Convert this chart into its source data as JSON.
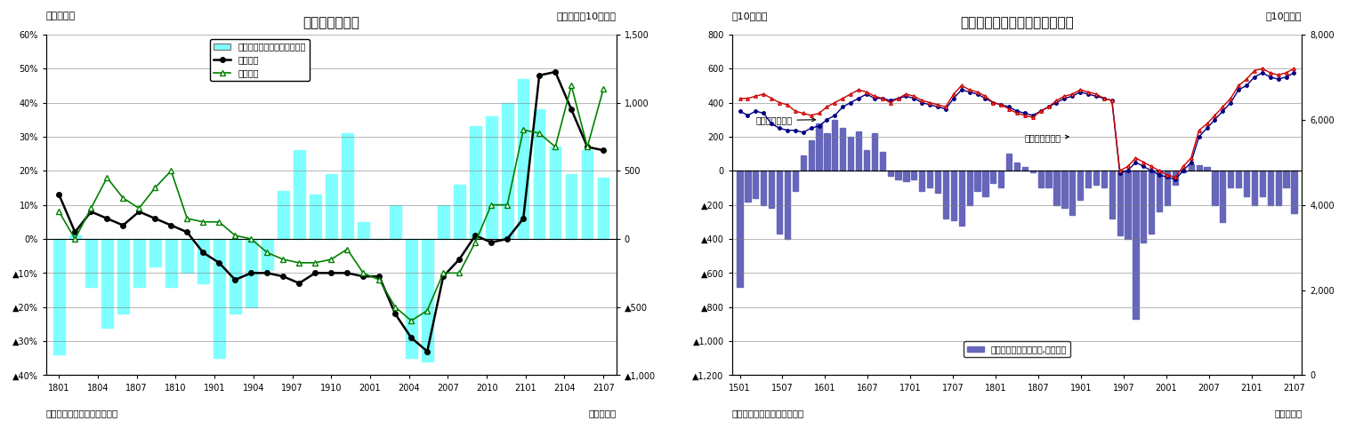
{
  "chart1": {
    "title": "貿易収支の推移",
    "ylabel_left": "（前年比）",
    "ylabel_right": "（前年差、10億円）",
    "xlabel": "（年・月）",
    "source": "（資料）財務省「貿易統計」",
    "xtick_labels": [
      "1801",
      "1804",
      "1807",
      "1810",
      "1901",
      "1904",
      "1907",
      "1910",
      "2001",
      "2004",
      "2007",
      "2010",
      "2101",
      "2104",
      "2107"
    ],
    "ylim_left": [
      -0.4,
      0.6
    ],
    "ylim_right": [
      -1000,
      1500
    ],
    "yticks_left": [
      -0.4,
      -0.3,
      -0.2,
      -0.1,
      0.0,
      0.1,
      0.2,
      0.3,
      0.4,
      0.5,
      0.6
    ],
    "ytick_labels_left": [
      "▲40%",
      "▲30%",
      "▲20%",
      "▲10%",
      "0%",
      "10%",
      "20%",
      "30%",
      "40%",
      "50%",
      "60%"
    ],
    "yticks_right": [
      -1000,
      -500,
      0,
      500,
      1000,
      1500
    ],
    "ytick_labels_right": [
      "▲1,000",
      "▲500",
      "0",
      "500",
      "1,000",
      "1,500"
    ],
    "bar_color": "#7fffff",
    "bar_values": [
      -0.34,
      0.01,
      -0.14,
      -0.26,
      -0.22,
      -0.14,
      -0.08,
      -0.14,
      -0.1,
      -0.13,
      -0.35,
      -0.22,
      -0.2,
      -0.09,
      0.14,
      0.26,
      0.13,
      0.19,
      0.31,
      0.05,
      0.0,
      0.1,
      -0.35,
      -0.36,
      0.1,
      0.16,
      0.33,
      0.36,
      0.4,
      0.47,
      0.38,
      0.27,
      0.19,
      0.26,
      0.18
    ],
    "export_values": [
      0.13,
      0.02,
      0.08,
      0.06,
      0.04,
      0.08,
      0.06,
      0.04,
      0.02,
      -0.04,
      -0.07,
      -0.12,
      -0.1,
      -0.1,
      -0.11,
      -0.13,
      -0.1,
      -0.1,
      -0.1,
      -0.11,
      -0.11,
      -0.22,
      -0.29,
      -0.33,
      -0.11,
      -0.06,
      0.01,
      -0.01,
      0.0,
      0.06,
      0.48,
      0.49,
      0.38,
      0.27,
      0.26
    ],
    "import_values": [
      0.08,
      0.0,
      0.09,
      0.18,
      0.12,
      0.09,
      0.15,
      0.2,
      0.06,
      0.05,
      0.05,
      0.01,
      0.0,
      -0.04,
      -0.06,
      -0.07,
      -0.07,
      -0.06,
      -0.03,
      -0.1,
      -0.12,
      -0.2,
      -0.24,
      -0.21,
      -0.1,
      -0.1,
      -0.01,
      0.1,
      0.1,
      0.32,
      0.31,
      0.27,
      0.45,
      0.27,
      0.44
    ],
    "legend_bar": "貿易収支・前年差（右目盛）",
    "legend_export": "輸出金額",
    "legend_import": "輸入金額",
    "export_color": "#000000",
    "import_color": "#008000"
  },
  "chart2": {
    "title": "貿易収支（季節調整値）の推移",
    "ylabel_left": "（10億円）",
    "ylabel_right": "（10億円）",
    "xlabel": "（年・月）",
    "source": "（資料）財務省「貿易統計」",
    "xtick_labels": [
      "1501",
      "1507",
      "1601",
      "1607",
      "1701",
      "1707",
      "1801",
      "1807",
      "1901",
      "1907",
      "2001",
      "2007",
      "2101",
      "2107"
    ],
    "ylim_left": [
      -1200,
      800
    ],
    "ylim_right": [
      0,
      8000
    ],
    "yticks_left": [
      -1200,
      -1000,
      -800,
      -600,
      -400,
      -200,
      0,
      200,
      400,
      600,
      800
    ],
    "ytick_labels_left": [
      "▲1,200",
      "▲1,000",
      "▲800",
      "▲600",
      "▲400",
      "▲200",
      "0",
      "200",
      "400",
      "600",
      "800"
    ],
    "yticks_right": [
      0,
      2000,
      4000,
      6000,
      8000
    ],
    "ytick_labels_right": [
      "0",
      "2,000",
      "4,000",
      "6,000",
      "8,000"
    ],
    "bar_color": "#6666bb",
    "bar_values_left": [
      -680,
      -180,
      -160,
      -200,
      -220,
      -370,
      -400,
      -120,
      90,
      180,
      280,
      220,
      300,
      250,
      200,
      230,
      120,
      220,
      110,
      -30,
      -50,
      -60,
      -50,
      -120,
      -100,
      -130,
      -280,
      -290,
      -320,
      -200,
      -120,
      -150,
      -70,
      -100,
      100,
      50,
      20,
      -10,
      -100,
      -100,
      -200,
      -220,
      -260,
      -170,
      -100,
      -80,
      -100,
      -280,
      -380,
      -400,
      -870,
      -420,
      -370,
      -240,
      -200,
      -80,
      -10,
      40,
      30,
      20,
      -200,
      -300,
      -100,
      -100,
      -150,
      -200,
      -150,
      -200,
      -200,
      -100,
      -250
    ],
    "export_line": [
      620,
      610,
      620,
      615,
      590,
      580,
      575,
      575,
      570,
      580,
      585,
      600,
      610,
      630,
      640,
      650,
      660,
      650,
      650,
      645,
      650,
      655,
      650,
      640,
      635,
      630,
      625,
      650,
      670,
      665,
      660,
      650,
      640,
      635,
      630,
      620,
      615,
      610,
      620,
      630,
      640,
      650,
      655,
      665,
      660,
      655,
      650,
      645,
      475,
      480,
      500,
      490,
      480,
      470,
      465,
      460,
      480,
      500,
      560,
      580,
      600,
      620,
      640,
      670,
      680,
      700,
      710,
      700,
      695,
      700,
      710
    ],
    "import_line": [
      650,
      650,
      655,
      660,
      650,
      640,
      635,
      620,
      615,
      610,
      615,
      630,
      640,
      650,
      660,
      670,
      665,
      655,
      650,
      640,
      650,
      660,
      655,
      645,
      640,
      635,
      630,
      660,
      680,
      670,
      665,
      655,
      640,
      635,
      625,
      615,
      610,
      605,
      620,
      630,
      645,
      655,
      660,
      670,
      665,
      660,
      650,
      645,
      480,
      490,
      510,
      500,
      490,
      480,
      470,
      465,
      490,
      510,
      575,
      590,
      610,
      630,
      650,
      680,
      695,
      715,
      720,
      710,
      705,
      710,
      720
    ],
    "legend_bar": "貿易収支（季節調整値,左目盛）",
    "annotation_import": "輸入（右目盛）",
    "annotation_export": "輸出（右目盛）",
    "export_color": "#000080",
    "import_color": "#cc0000"
  }
}
